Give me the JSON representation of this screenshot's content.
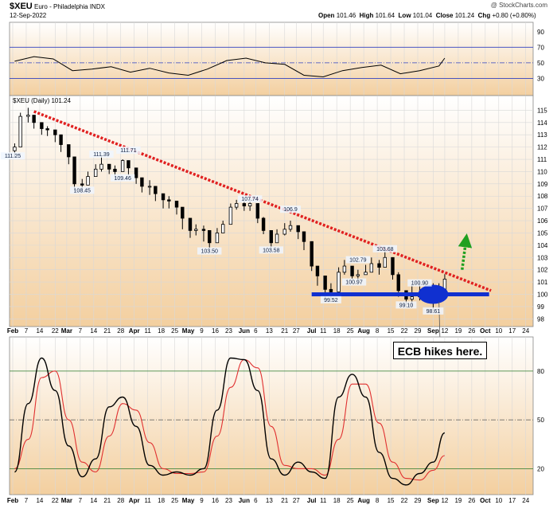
{
  "header": {
    "symbol": "$XEU",
    "name": "Euro - Philadelphia",
    "exchange": "INDX",
    "date": "12-Sep-2022",
    "credit": "@ StockCharts.com",
    "ohlc": {
      "open_label": "Open",
      "open": "101.46",
      "high_label": "High",
      "high": "101.64",
      "low_label": "Low",
      "low": "101.04",
      "close_label": "Close",
      "close": "101.24",
      "chg_label": "Chg",
      "chg": "+0.80 (+0.80%)"
    },
    "price_legend": "$XEU (Daily) 101.24"
  },
  "annotation": {
    "callout": "ECB hikes here."
  },
  "colors": {
    "background_top": "#ffffff",
    "background_bottom": "#f3cf9f",
    "price": "#000000",
    "trendline": "#e02020",
    "support": "#1030d0",
    "up_arrow": "#20a020",
    "rsi_line": "#000000",
    "stoch_k": "#000000",
    "stoch_d": "#e03030"
  },
  "chart_data": [
    {
      "type": "line",
      "panel": "RSI",
      "y_ticks": [
        30,
        50,
        70,
        90
      ],
      "ylim": [
        10,
        100
      ],
      "levels": [
        30,
        50,
        70
      ],
      "x_dates": [
        "2022-02-01",
        "2022-02-11",
        "2022-02-21",
        "2022-03-03",
        "2022-03-13",
        "2022-03-23",
        "2022-04-02",
        "2022-04-12",
        "2022-04-22",
        "2022-05-02",
        "2022-05-12",
        "2022-05-22",
        "2022-06-01",
        "2022-06-11",
        "2022-06-21",
        "2022-07-01",
        "2022-07-11",
        "2022-07-21",
        "2022-07-31",
        "2022-08-10",
        "2022-08-20",
        "2022-08-30",
        "2022-09-09",
        "2022-09-12"
      ],
      "values": [
        52,
        58,
        55,
        40,
        42,
        45,
        38,
        43,
        37,
        34,
        42,
        53,
        56,
        50,
        48,
        34,
        32,
        40,
        44,
        47,
        36,
        40,
        46,
        56
      ]
    },
    {
      "type": "candlestick",
      "panel": "price",
      "ylim": [
        97.5,
        116
      ],
      "y_ticks": [
        98,
        99,
        100,
        101,
        102,
        103,
        104,
        105,
        106,
        107,
        108,
        109,
        110,
        111,
        112,
        113,
        114,
        115
      ],
      "x_ticks": [
        "Feb",
        "7",
        "14",
        "22",
        "Mar",
        "7",
        "14",
        "21",
        "28",
        "Apr",
        "11",
        "18",
        "25",
        "May",
        "9",
        "16",
        "23",
        "Jun",
        "6",
        "13",
        "21",
        "27",
        "Jul",
        "11",
        "18",
        "25",
        "Aug",
        "8",
        "15",
        "22",
        "29",
        "Sep",
        "12",
        "19",
        "26",
        "Oct",
        "10",
        "17",
        "24"
      ],
      "x_tick_dates": [
        "2022-01-31",
        "2022-02-07",
        "2022-02-14",
        "2022-02-22",
        "2022-02-28",
        "2022-03-07",
        "2022-03-14",
        "2022-03-21",
        "2022-03-28",
        "2022-04-04",
        "2022-04-11",
        "2022-04-18",
        "2022-04-25",
        "2022-05-02",
        "2022-05-09",
        "2022-05-16",
        "2022-05-23",
        "2022-05-31",
        "2022-06-06",
        "2022-06-13",
        "2022-06-21",
        "2022-06-27",
        "2022-07-05",
        "2022-07-11",
        "2022-07-18",
        "2022-07-25",
        "2022-08-01",
        "2022-08-08",
        "2022-08-15",
        "2022-08-22",
        "2022-08-29",
        "2022-09-06",
        "2022-09-12",
        "2022-09-19",
        "2022-09-26",
        "2022-10-03",
        "2022-10-10",
        "2022-10-17",
        "2022-10-24"
      ],
      "x_dates": [
        "2022-02-01",
        "2022-02-04",
        "2022-02-08",
        "2022-02-11",
        "2022-02-15",
        "2022-02-18",
        "2022-02-22",
        "2022-02-25",
        "2022-03-01",
        "2022-03-04",
        "2022-03-08",
        "2022-03-11",
        "2022-03-15",
        "2022-03-18",
        "2022-03-22",
        "2022-03-25",
        "2022-03-29",
        "2022-04-01",
        "2022-04-05",
        "2022-04-08",
        "2022-04-12",
        "2022-04-15",
        "2022-04-19",
        "2022-04-22",
        "2022-04-26",
        "2022-04-29",
        "2022-05-03",
        "2022-05-06",
        "2022-05-10",
        "2022-05-13",
        "2022-05-17",
        "2022-05-20",
        "2022-05-24",
        "2022-05-27",
        "2022-05-31",
        "2022-06-03",
        "2022-06-07",
        "2022-06-10",
        "2022-06-14",
        "2022-06-17",
        "2022-06-21",
        "2022-06-24",
        "2022-06-28",
        "2022-07-01",
        "2022-07-05",
        "2022-07-08",
        "2022-07-12",
        "2022-07-15",
        "2022-07-19",
        "2022-07-22",
        "2022-07-26",
        "2022-07-29",
        "2022-08-02",
        "2022-08-05",
        "2022-08-09",
        "2022-08-12",
        "2022-08-16",
        "2022-08-19",
        "2022-08-23",
        "2022-08-26",
        "2022-08-30",
        "2022-09-02",
        "2022-09-06",
        "2022-09-09",
        "2022-09-12"
      ],
      "close": [
        112.0,
        114.5,
        114.6,
        114.0,
        113.5,
        113.4,
        113.0,
        112.2,
        111.2,
        109.0,
        108.9,
        109.6,
        110.2,
        110.6,
        110.2,
        110.0,
        110.9,
        110.3,
        109.5,
        108.8,
        108.8,
        108.2,
        107.7,
        107.6,
        107.1,
        106.2,
        105.2,
        105.3,
        105.2,
        104.2,
        105.0,
        105.7,
        107.1,
        107.4,
        107.2,
        107.4,
        106.2,
        105.2,
        104.2,
        104.9,
        105.3,
        105.6,
        105.1,
        104.3,
        102.3,
        101.5,
        100.4,
        100.2,
        101.8,
        102.3,
        101.5,
        101.6,
        101.8,
        102.5,
        102.2,
        103.0,
        101.6,
        100.3,
        99.6,
        99.8,
        99.9,
        100.4,
        100.0,
        100.4,
        101.24
      ],
      "high": [
        112.3,
        114.8,
        115.2,
        114.5,
        113.9,
        113.7,
        113.4,
        112.6,
        111.8,
        109.8,
        109.4,
        110.0,
        110.6,
        111.3,
        110.6,
        110.5,
        111.0,
        110.8,
        110.0,
        109.3,
        109.3,
        108.6,
        108.2,
        108.0,
        107.5,
        106.6,
        105.8,
        105.7,
        105.6,
        104.7,
        105.4,
        106.0,
        107.4,
        107.7,
        107.6,
        107.8,
        106.8,
        106.3,
        105.0,
        105.3,
        105.8,
        106.0,
        105.6,
        105.0,
        103.1,
        102.2,
        101.3,
        100.9,
        102.2,
        102.8,
        102.1,
        102.0,
        102.4,
        103.0,
        102.8,
        103.6,
        103.0,
        101.8,
        100.2,
        100.9,
        100.9,
        100.9,
        100.9,
        100.9,
        101.64
      ],
      "low": [
        111.2,
        113.3,
        114.0,
        113.5,
        113.0,
        112.9,
        112.4,
        111.6,
        110.6,
        108.4,
        108.5,
        109.0,
        109.7,
        110.0,
        109.8,
        109.3,
        110.2,
        109.7,
        109.0,
        108.3,
        108.1,
        107.6,
        107.0,
        107.0,
        106.5,
        105.3,
        104.6,
        104.8,
        104.3,
        103.5,
        104.4,
        105.1,
        106.4,
        106.9,
        106.8,
        106.8,
        105.8,
        104.9,
        103.6,
        104.2,
        104.8,
        105.1,
        104.5,
        103.6,
        101.9,
        100.7,
        99.6,
        99.6,
        100.4,
        101.6,
        101.2,
        101.1,
        101.6,
        101.9,
        101.6,
        102.3,
        101.2,
        99.8,
        99.1,
        99.0,
        99.5,
        99.4,
        98.6,
        99.8,
        101.04
      ],
      "labels": [
        {
          "text": "111.25",
          "date": "2022-01-31",
          "value": 111.25
        },
        {
          "text": "108.45",
          "date": "2022-03-08",
          "value": 108.45
        },
        {
          "text": "111.39",
          "date": "2022-03-18",
          "value": 111.39
        },
        {
          "text": "109.46",
          "date": "2022-03-29",
          "value": 109.46
        },
        {
          "text": "111.71",
          "date": "2022-04-01",
          "value": 111.71
        },
        {
          "text": "103.50",
          "date": "2022-05-13",
          "value": 103.5
        },
        {
          "text": "107.74",
          "date": "2022-06-03",
          "value": 107.74
        },
        {
          "text": "103.58",
          "date": "2022-06-14",
          "value": 103.58
        },
        {
          "text": "106.9",
          "date": "2022-06-24",
          "value": 106.9
        },
        {
          "text": "99.52",
          "date": "2022-07-15",
          "value": 99.52
        },
        {
          "text": "102.79",
          "date": "2022-07-29",
          "value": 102.79
        },
        {
          "text": "100.97",
          "date": "2022-07-27",
          "value": 100.97
        },
        {
          "text": "103.68",
          "date": "2022-08-12",
          "value": 103.68
        },
        {
          "text": "100.90",
          "date": "2022-08-30",
          "value": 100.9
        },
        {
          "text": "99.10",
          "date": "2022-08-23",
          "value": 99.1
        },
        {
          "text": "98.61",
          "date": "2022-09-06",
          "value": 98.61
        }
      ],
      "trendline": {
        "from": {
          "date": "2022-02-11",
          "value": 114.9
        },
        "to": {
          "date": "2022-10-06",
          "value": 100.3
        }
      },
      "support_line": {
        "from": {
          "date": "2022-07-05",
          "value": 100.0
        },
        "to": {
          "date": "2022-10-05",
          "value": 100.0
        }
      },
      "highlight_ellipse": {
        "center": {
          "date": "2022-09-06",
          "value": 100.0
        }
      },
      "arrow": {
        "from": {
          "date": "2022-09-21",
          "value": 102.0
        },
        "to": {
          "date": "2022-09-23",
          "value": 104.4
        }
      },
      "callout_point": {
        "date": "2022-09-09",
        "value": 99.4
      }
    },
    {
      "type": "line",
      "panel": "Stochastic",
      "y_ticks": [
        20,
        50,
        80
      ],
      "ylim": [
        5,
        100
      ],
      "levels": [
        20,
        50,
        80
      ],
      "series": [
        {
          "key": "k",
          "x_dates": [
            "2022-02-01",
            "2022-02-08",
            "2022-02-15",
            "2022-02-22",
            "2022-03-01",
            "2022-03-08",
            "2022-03-15",
            "2022-03-22",
            "2022-03-29",
            "2022-04-05",
            "2022-04-12",
            "2022-04-19",
            "2022-04-26",
            "2022-05-03",
            "2022-05-10",
            "2022-05-17",
            "2022-05-24",
            "2022-05-31",
            "2022-06-07",
            "2022-06-14",
            "2022-06-21",
            "2022-06-28",
            "2022-07-05",
            "2022-07-12",
            "2022-07-19",
            "2022-07-26",
            "2022-08-02",
            "2022-08-09",
            "2022-08-16",
            "2022-08-23",
            "2022-08-30",
            "2022-09-06",
            "2022-09-12"
          ],
          "values": [
            18,
            60,
            88,
            68,
            34,
            15,
            26,
            58,
            64,
            46,
            22,
            16,
            18,
            16,
            20,
            56,
            88,
            87,
            68,
            26,
            16,
            24,
            18,
            14,
            64,
            78,
            64,
            30,
            14,
            10,
            17,
            24,
            42
          ]
        },
        {
          "key": "d",
          "x_dates": [
            "2022-02-01",
            "2022-02-08",
            "2022-02-15",
            "2022-02-22",
            "2022-03-01",
            "2022-03-08",
            "2022-03-15",
            "2022-03-22",
            "2022-03-29",
            "2022-04-05",
            "2022-04-12",
            "2022-04-19",
            "2022-04-26",
            "2022-05-03",
            "2022-05-10",
            "2022-05-17",
            "2022-05-24",
            "2022-05-31",
            "2022-06-07",
            "2022-06-14",
            "2022-06-21",
            "2022-06-28",
            "2022-07-05",
            "2022-07-12",
            "2022-07-19",
            "2022-07-26",
            "2022-08-02",
            "2022-08-09",
            "2022-08-16",
            "2022-08-23",
            "2022-08-30",
            "2022-09-06",
            "2022-09-12"
          ],
          "values": [
            20,
            38,
            76,
            80,
            50,
            24,
            18,
            40,
            60,
            56,
            36,
            20,
            17,
            17,
            18,
            40,
            70,
            87,
            82,
            46,
            22,
            20,
            20,
            16,
            38,
            72,
            72,
            48,
            24,
            14,
            13,
            19,
            28
          ]
        }
      ]
    }
  ]
}
